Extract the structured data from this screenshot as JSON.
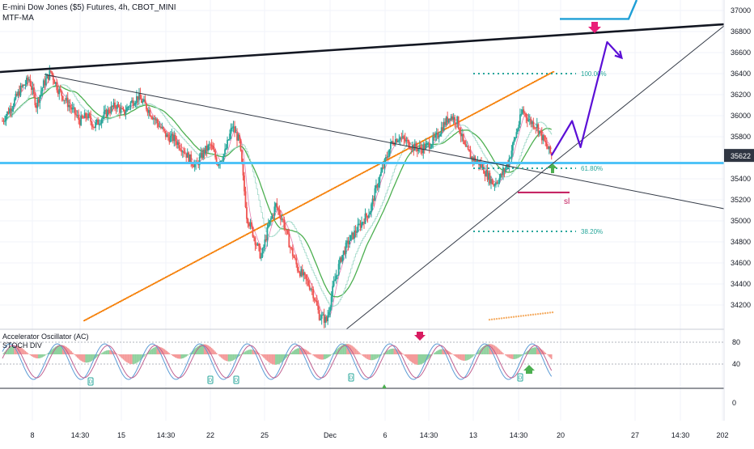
{
  "header": {
    "symbol_title": "E-mini Dow Jones ($5) Futures, 4h, CBOT_MINI",
    "indicator_1": "MTF-MA"
  },
  "oscillator_panel": {
    "title_1": "Accelerator Oscillator (AC)",
    "title_2": "STOCH DIV",
    "y_ticks": [
      "80",
      "40"
    ],
    "bottom_tick": "0"
  },
  "price_axis": {
    "ticks": [
      "37000",
      "36800",
      "36600",
      "36400",
      "36200",
      "36000",
      "35800",
      "35400",
      "35200",
      "35000",
      "34800",
      "34600",
      "34400",
      "34200"
    ],
    "current_price": "35622",
    "current_price_color": "#2f3542"
  },
  "time_axis": {
    "labels": [
      "8",
      "14:30",
      "15",
      "14:30",
      "22",
      "25",
      "Dec",
      "6",
      "14:30",
      "13",
      "14:30",
      "20",
      "27",
      "14:30",
      "202"
    ]
  },
  "annotations": {
    "fib_100": "100.00%",
    "fib_618": "61.80%",
    "fib_382": "38.20%",
    "stop_loss": "sl",
    "divergence_marker": "D"
  },
  "colors": {
    "support_line": "#4fc3f7",
    "trendline": "#131722",
    "fib_line": "#26a69a",
    "forecast_arrow": "#5b0fd6",
    "target_line": "#1e9fd6",
    "stop_loss": "#c2185b",
    "ma_green": "#4caf50",
    "ma_orange": "#f57c00",
    "ma_pink": "#e57bb0",
    "candle_up": "#26a69a",
    "candle_down": "#ef5350"
  },
  "chart_data": {
    "type": "candlestick",
    "title": "E-mini Dow Jones ($5) Futures, 4h, CBOT_MINI",
    "interval": "4h",
    "y_ticks": [
      34200,
      34400,
      34600,
      34800,
      35000,
      35200,
      35400,
      35800,
      36000,
      36200,
      36400,
      36600,
      36800,
      37000
    ],
    "current_price": 35622,
    "close_path": [
      [
        0,
        35950
      ],
      [
        8,
        36100
      ],
      [
        15,
        36250
      ],
      [
        22,
        36350
      ],
      [
        28,
        36100
      ],
      [
        34,
        36300
      ],
      [
        40,
        36420
      ],
      [
        46,
        36250
      ],
      [
        52,
        36150
      ],
      [
        58,
        36050
      ],
      [
        64,
        35950
      ],
      [
        70,
        36000
      ],
      [
        76,
        35900
      ],
      [
        82,
        35980
      ],
      [
        88,
        36050
      ],
      [
        94,
        36100
      ],
      [
        100,
        36020
      ],
      [
        106,
        36120
      ],
      [
        112,
        36180
      ],
      [
        118,
        36100
      ],
      [
        124,
        36000
      ],
      [
        130,
        35900
      ],
      [
        136,
        35800
      ],
      [
        142,
        35780
      ],
      [
        148,
        35700
      ],
      [
        154,
        35600
      ],
      [
        160,
        35520
      ],
      [
        166,
        35650
      ],
      [
        172,
        35720
      ],
      [
        178,
        35550
      ],
      [
        184,
        35650
      ],
      [
        190,
        35900
      ],
      [
        196,
        35750
      ],
      [
        202,
        35050
      ],
      [
        208,
        34850
      ],
      [
        214,
        34650
      ],
      [
        220,
        34950
      ],
      [
        226,
        35150
      ],
      [
        232,
        35000
      ],
      [
        238,
        34750
      ],
      [
        244,
        34550
      ],
      [
        250,
        34450
      ],
      [
        256,
        34350
      ],
      [
        262,
        34100
      ],
      [
        268,
        34050
      ],
      [
        274,
        34400
      ],
      [
        280,
        34650
      ],
      [
        286,
        34800
      ],
      [
        292,
        34900
      ],
      [
        298,
        35000
      ],
      [
        304,
        35100
      ],
      [
        310,
        35350
      ],
      [
        316,
        35550
      ],
      [
        322,
        35750
      ],
      [
        328,
        35800
      ],
      [
        334,
        35750
      ],
      [
        340,
        35700
      ],
      [
        346,
        35680
      ],
      [
        352,
        35720
      ],
      [
        358,
        35780
      ],
      [
        364,
        35900
      ],
      [
        370,
        36000
      ],
      [
        376,
        35950
      ],
      [
        382,
        35700
      ],
      [
        388,
        35600
      ],
      [
        394,
        35550
      ],
      [
        400,
        35450
      ],
      [
        406,
        35350
      ],
      [
        412,
        35420
      ],
      [
        418,
        35550
      ],
      [
        424,
        35800
      ],
      [
        430,
        36050
      ],
      [
        436,
        35950
      ],
      [
        442,
        35900
      ],
      [
        448,
        35750
      ],
      [
        454,
        35622
      ]
    ],
    "forecast_path": [
      [
        454,
        35622
      ],
      [
        471,
        35950
      ],
      [
        478,
        35700
      ],
      [
        500,
        36700
      ],
      [
        512,
        36550
      ]
    ],
    "fibonacci": [
      {
        "level": "100.00%",
        "price": 36400
      },
      {
        "level": "61.80%",
        "price": 35500
      },
      {
        "level": "38.20%",
        "price": 34900
      }
    ],
    "support_level": 35550,
    "stop_loss_level": 35270,
    "target_level": 36920,
    "oscillator": {
      "name": "Accelerator Oscillator (AC)",
      "y_ticks": [
        80,
        40,
        0
      ]
    }
  }
}
